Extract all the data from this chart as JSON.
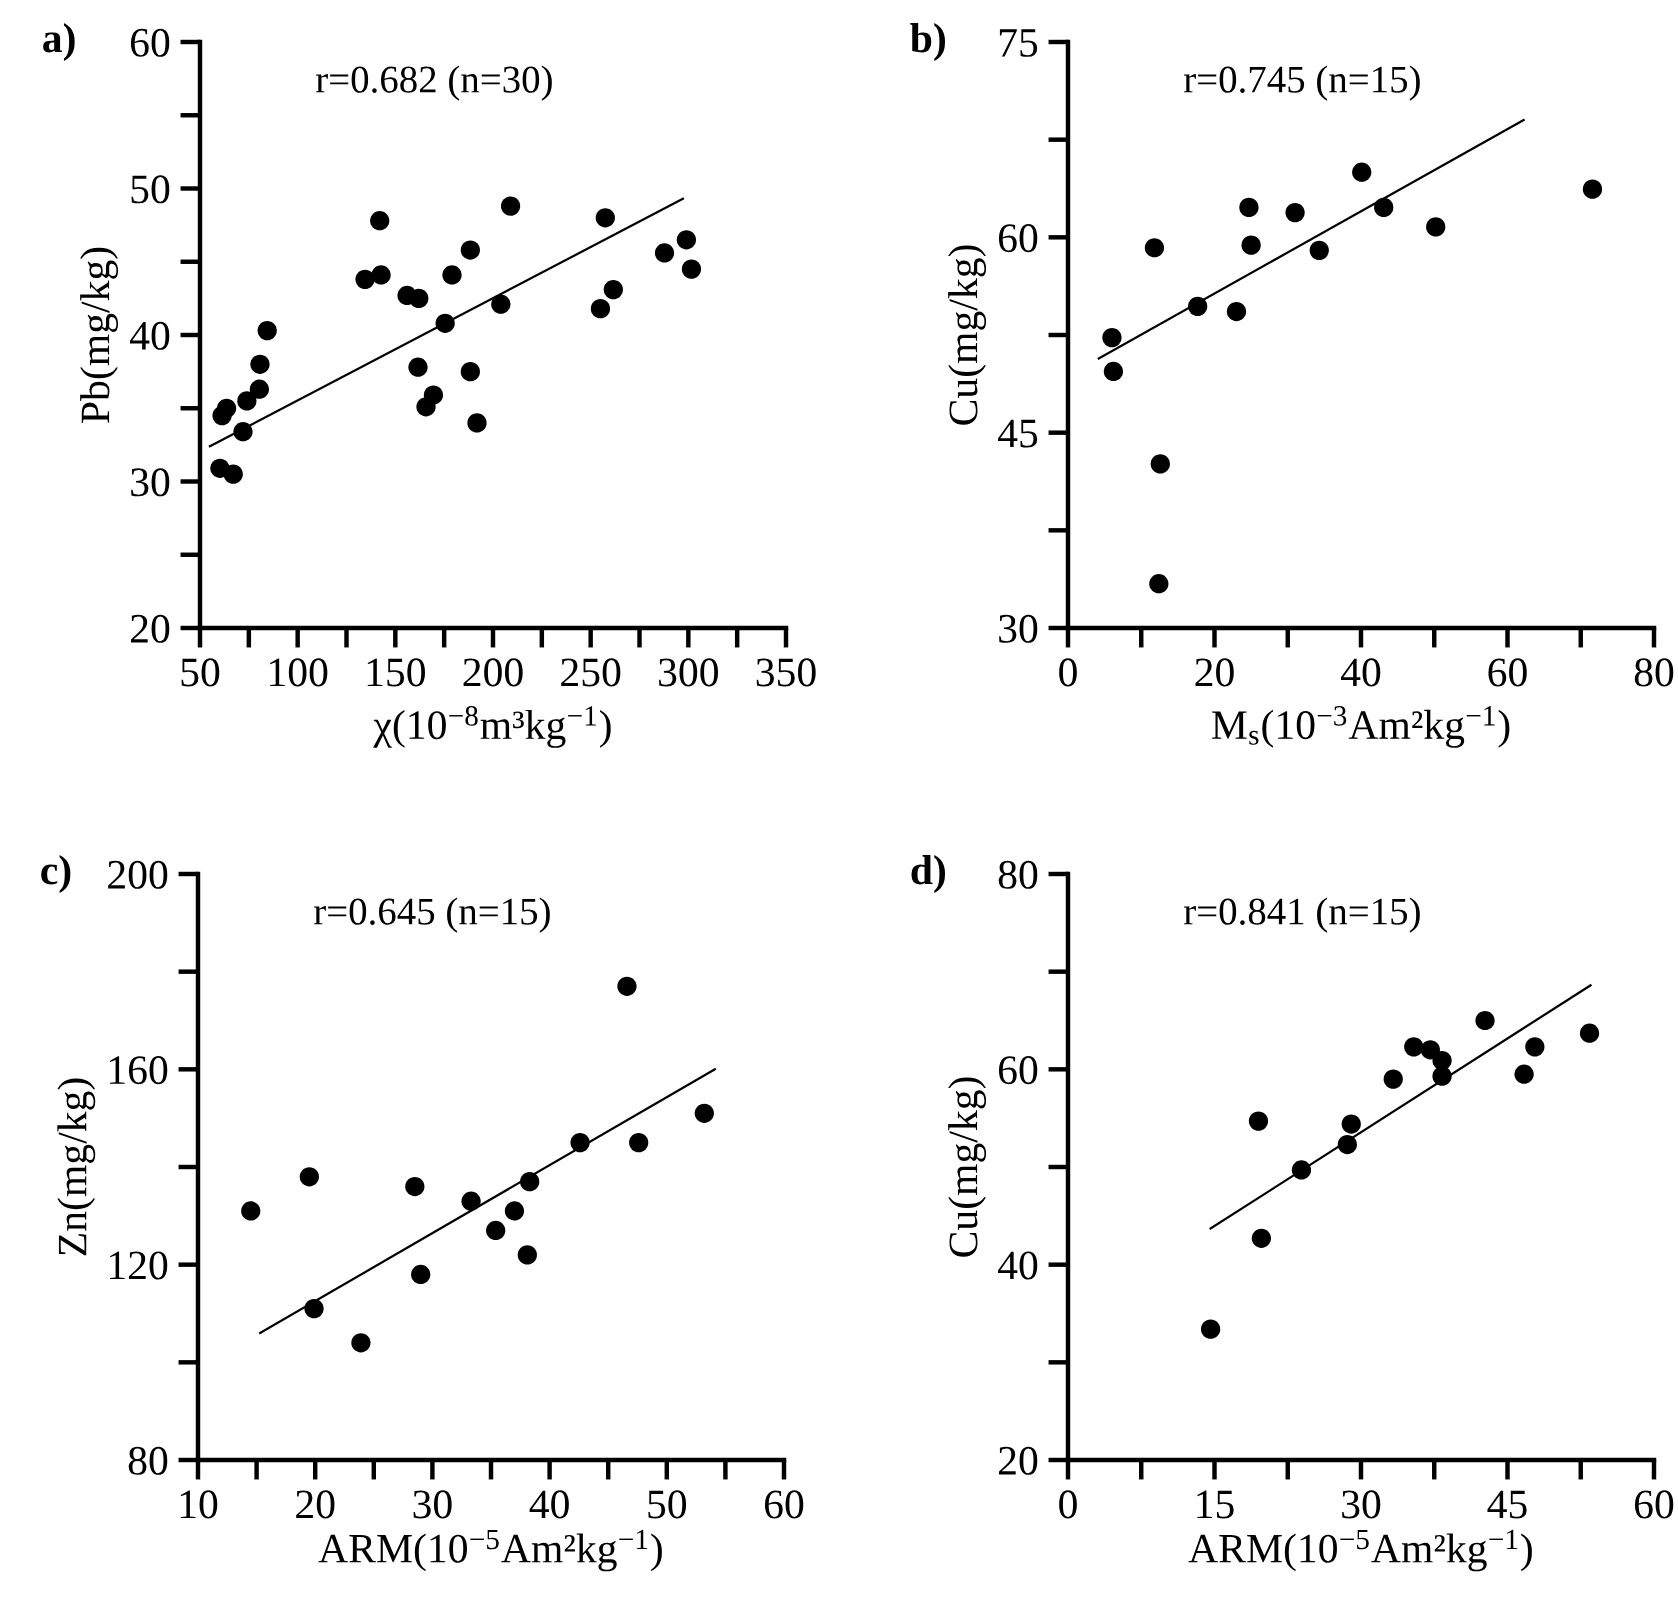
{
  "chart_data": [
    {
      "type": "scatter",
      "title": "a)",
      "xlabel": "χ(10$^{−8}$m³kg$^{−1}$)",
      "ylabel": "Pb(mg/kg)",
      "annotations": [
        "r=0.682 (n=30)"
      ],
      "grid": false,
      "xlim": [
        50,
        350
      ],
      "xticks": [
        50,
        {
          "value": 75,
          "label": null
        },
        100,
        {
          "value": 125,
          "label": null
        },
        150,
        {
          "value": 175,
          "label": null
        },
        200,
        {
          "value": 225,
          "label": null
        },
        250,
        {
          "value": 275,
          "label": null
        },
        300,
        {
          "value": 325,
          "label": null
        },
        350
      ],
      "ylim": [
        20,
        60
      ],
      "yticks": [
        20,
        {
          "value": 25,
          "label": null
        },
        30,
        {
          "value": 35,
          "label": null
        },
        40,
        {
          "value": 45,
          "label": null
        },
        50,
        {
          "value": 55,
          "label": null
        },
        60
      ],
      "series": [
        {
          "marker": "circle",
          "color": "#000000",
          "x": [
            61.3,
            63.6,
            60.2,
            67,
            74,
            72,
            80.4,
            80.7,
            84.4,
            134.5,
            142,
            142.7,
            156,
            162,
            161.6,
            165.7,
            169.5,
            175.5,
            179,
            188.4,
            188.4,
            191.8,
            204,
            209,
            255,
            257.5,
            261.6,
            287.8,
            299,
            301.6
          ],
          "values": [
            34.5,
            35.0,
            30.9,
            30.5,
            35.5,
            33.4,
            36.3,
            38.0,
            40.3,
            43.8,
            47.8,
            44.1,
            42.7,
            42.5,
            37.8,
            35.1,
            35.9,
            40.8,
            44.1,
            45.8,
            37.5,
            34.0,
            42.1,
            48.8,
            41.8,
            48.0,
            43.1,
            45.6,
            46.5,
            44.5
          ]
        },
        {
          "type": "line",
          "marker": "none",
          "color": "#000000",
          "x": [
            55.1,
            297.2
          ],
          "values": [
            32.4,
            49.3
          ]
        }
      ]
    },
    {
      "type": "scatter",
      "title": "b)",
      "xlabel": "M$_{s}$(10$^{−3}$Am²kg$^{−1}$)",
      "ylabel": "Cu(mg/kg)",
      "annotations": [
        "r=0.745 (n=15)"
      ],
      "grid": false,
      "xlim": [
        0,
        80
      ],
      "xticks": [
        0,
        {
          "value": 10,
          "label": null
        },
        20,
        {
          "value": 30,
          "label": null
        },
        40,
        {
          "value": 50,
          "label": null
        },
        60,
        {
          "value": 70,
          "label": null
        },
        80
      ],
      "ylim": [
        30,
        75
      ],
      "yticks": [
        30,
        {
          "value": 37.5,
          "label": null
        },
        45,
        {
          "value": 52.5,
          "label": null
        },
        60,
        {
          "value": 67.5,
          "label": null
        },
        75
      ],
      "series": [
        {
          "marker": "circle",
          "color": "#000000",
          "x": [
            6.0,
            6.2,
            11.8,
            12.6,
            12.4,
            17.7,
            23.0,
            24.7,
            25.0,
            31.0,
            34.3,
            40.1,
            43.1,
            50.2,
            71.6
          ],
          "values": [
            52.3,
            49.7,
            59.2,
            42.6,
            33.4,
            54.7,
            54.3,
            62.3,
            59.4,
            61.9,
            59.0,
            65.0,
            62.3,
            60.8,
            63.7
          ]
        },
        {
          "type": "line",
          "marker": "none",
          "color": "#000000",
          "x": [
            4.2,
            62.2
          ],
          "values": [
            50.7,
            69.0
          ]
        }
      ]
    },
    {
      "type": "scatter",
      "title": "c)",
      "xlabel": "ARM(10$^{−5}$Am²kg$^{−1}$)",
      "ylabel": "Zn(mg/kg)",
      "annotations": [
        "r=0.645 (n=15)"
      ],
      "grid": false,
      "xlim": [
        10,
        60
      ],
      "xticks": [
        10,
        {
          "value": 15,
          "label": null
        },
        20,
        {
          "value": 25,
          "label": null
        },
        30,
        {
          "value": 35,
          "label": null
        },
        40,
        {
          "value": 45,
          "label": null
        },
        50,
        {
          "value": 55,
          "label": null
        },
        60
      ],
      "ylim": [
        80,
        200
      ],
      "yticks": [
        80,
        {
          "value": 100,
          "label": null
        },
        120,
        {
          "value": 140,
          "label": null
        },
        160,
        {
          "value": 180,
          "label": null
        },
        200
      ],
      "series": [
        {
          "marker": "circle",
          "color": "#000000",
          "x": [
            14.5,
            19.5,
            19.9,
            23.9,
            28.5,
            29.0,
            33.3,
            35.4,
            37.0,
            38.1,
            38.3,
            42.6,
            46.6,
            47.6,
            53.2
          ],
          "values": [
            131,
            138,
            111,
            104,
            136,
            118,
            133,
            127,
            131,
            122,
            137,
            145,
            177,
            145,
            151
          ]
        },
        {
          "type": "line",
          "marker": "none",
          "color": "#000000",
          "x": [
            15.3,
            54.1
          ],
          "values": [
            106,
            160
          ]
        }
      ]
    },
    {
      "type": "scatter",
      "title": "d)",
      "xlabel": "ARM(10$^{−5}$Am²kg$^{−1}$)",
      "ylabel": "Cu(mg/kg)",
      "annotations": [
        "r=0.841 (n=15)"
      ],
      "grid": false,
      "xlim": [
        0,
        60
      ],
      "xticks": [
        0,
        {
          "value": 7.5,
          "label": null
        },
        15,
        {
          "value": 22.5,
          "label": null
        },
        30,
        {
          "value": 37.5,
          "label": null
        },
        45,
        {
          "value": 52.5,
          "label": null
        },
        60
      ],
      "ylim": [
        20,
        80
      ],
      "yticks": [
        20,
        {
          "value": 30,
          "label": null
        },
        40,
        {
          "value": 50,
          "label": null
        },
        60,
        {
          "value": 70,
          "label": null
        },
        80
      ],
      "series": [
        {
          "marker": "circle",
          "color": "#000000",
          "x": [
            14.6,
            19.5,
            19.8,
            23.9,
            28.6,
            29.0,
            33.3,
            35.4,
            37.1,
            38.3,
            38.3,
            42.7,
            46.7,
            47.8,
            53.4
          ],
          "values": [
            33.4,
            54.7,
            42.7,
            49.7,
            52.3,
            54.4,
            59.0,
            62.3,
            62.0,
            60.9,
            59.3,
            65.0,
            59.5,
            62.3,
            63.7
          ]
        },
        {
          "type": "line",
          "marker": "none",
          "color": "#000000",
          "x": [
            14.6,
            53.5
          ],
          "values": [
            43.7,
            68.6
          ]
        }
      ]
    }
  ]
}
